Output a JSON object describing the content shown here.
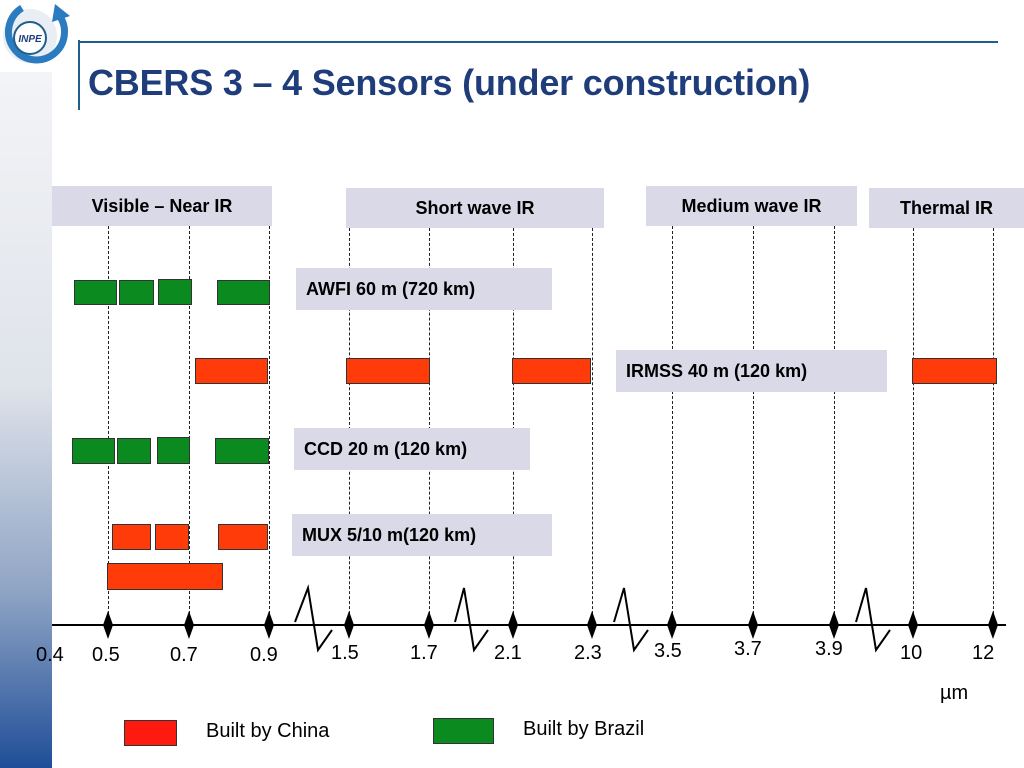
{
  "header": {
    "title": "CBERS 3 – 4 Sensors (under construction)",
    "logo_text": "INPE"
  },
  "bands": [
    {
      "label": "Visible – Near IR"
    },
    {
      "label": "Short wave IR"
    },
    {
      "label": "Medium wave IR"
    },
    {
      "label": "Thermal IR"
    }
  ],
  "sensors": [
    {
      "label": "AWFI  60 m (720 km)"
    },
    {
      "label": "IRMSS 40 m (120 km)"
    },
    {
      "label": "CCD  20 m (120 km)"
    },
    {
      "label": "MUX 5/10 m(120 km)"
    }
  ],
  "axis": {
    "ticks": [
      "0.4",
      "0.5",
      "0.7",
      "0.9",
      "1.5",
      "1.7",
      "2.1",
      "2.3",
      "3.5",
      "3.7",
      "3.9",
      "10",
      "12"
    ],
    "unit": "µm"
  },
  "legend": {
    "china": {
      "label": "Built by China",
      "color": "#ff3b0a"
    },
    "brazil": {
      "label": "Built by Brazil",
      "color": "#0b8a1f"
    }
  },
  "colors": {
    "title": "#1f3d7a",
    "label_bg": "#d9d9e8",
    "china": "#ff3b0a",
    "brazil": "#0b8a1f"
  }
}
